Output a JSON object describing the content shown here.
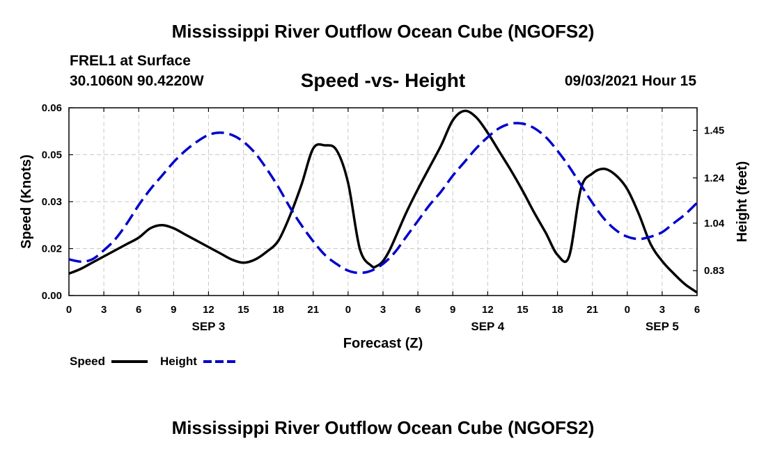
{
  "header": {
    "title_top": "Mississippi River Outflow Ocean Cube (NGOFS2)",
    "station": "FREL1 at Surface",
    "coords": "30.1060N  90.4220W",
    "datetime": "09/03/2021 Hour 15",
    "title_bottom": "Mississippi River Outflow Ocean Cube (NGOFS2)"
  },
  "chart_data": {
    "type": "line",
    "title": "Speed -vs- Height",
    "xlabel": "Forecast (Z)",
    "ylabel": "Speed (Knots)",
    "y2label": "Height (feet)",
    "xlim": [
      0,
      54
    ],
    "ylim": [
      0,
      0.06
    ],
    "y2lim": [
      0.72,
      1.55
    ],
    "x_ticks": [
      0,
      3,
      6,
      9,
      12,
      15,
      18,
      21,
      24,
      27,
      30,
      33,
      36,
      39,
      42,
      45,
      48,
      51,
      54
    ],
    "x_tick_labels": [
      "0",
      "3",
      "6",
      "9",
      "12",
      "15",
      "18",
      "21",
      "0",
      "3",
      "6",
      "9",
      "12",
      "15",
      "18",
      "21",
      "0",
      "3",
      "6"
    ],
    "y_ticks": [
      0,
      0.015,
      0.03,
      0.045,
      0.06
    ],
    "y_tick_labels": [
      "0.00",
      "0.02",
      "0.03",
      "0.05",
      "0.06"
    ],
    "y2_ticks": [
      0.83,
      1.04,
      1.24,
      1.45
    ],
    "y2_tick_labels": [
      "0.83",
      "1.04",
      "1.24",
      "1.45"
    ],
    "day_labels": [
      {
        "x": 12,
        "label": "SEP 3"
      },
      {
        "x": 36,
        "label": "SEP 4"
      },
      {
        "x": 51,
        "label": "SEP 5"
      }
    ],
    "legend": [
      {
        "name": "Speed",
        "color": "#000000",
        "dash": false
      },
      {
        "name": "Height",
        "color": "#0000cc",
        "dash": true
      }
    ],
    "series": [
      {
        "name": "Speed",
        "axis": "left",
        "color": "#000000",
        "x": [
          0,
          1,
          2,
          3,
          4,
          5,
          6,
          7,
          8,
          9,
          10,
          11,
          12,
          13,
          14,
          15,
          16,
          17,
          18,
          19,
          20,
          21,
          22,
          23,
          24,
          25,
          26,
          26.5,
          27,
          27.5,
          28,
          29,
          30,
          31,
          32,
          33,
          34,
          35,
          36,
          37,
          38,
          39,
          40,
          41,
          42,
          43,
          44,
          45,
          46,
          47,
          48,
          49,
          50,
          51,
          52,
          53,
          54
        ],
        "y": [
          0.007,
          0.0085,
          0.0105,
          0.0125,
          0.0145,
          0.0165,
          0.0185,
          0.0215,
          0.0225,
          0.0215,
          0.0195,
          0.0175,
          0.0155,
          0.0135,
          0.0115,
          0.0105,
          0.0115,
          0.014,
          0.0175,
          0.0255,
          0.0355,
          0.047,
          0.048,
          0.0465,
          0.036,
          0.015,
          0.0095,
          0.0095,
          0.011,
          0.014,
          0.018,
          0.0265,
          0.034,
          0.041,
          0.048,
          0.056,
          0.059,
          0.057,
          0.052,
          0.046,
          0.04,
          0.0335,
          0.0265,
          0.02,
          0.013,
          0.0125,
          0.034,
          0.039,
          0.0405,
          0.0385,
          0.034,
          0.026,
          0.0165,
          0.011,
          0.007,
          0.0035,
          0.001
        ]
      },
      {
        "name": "Height",
        "axis": "right",
        "color": "#0000cc",
        "x": [
          0,
          1,
          2,
          3,
          4,
          5,
          6,
          7,
          8,
          9,
          10,
          11,
          12,
          13,
          14,
          15,
          16,
          17,
          18,
          19,
          20,
          21,
          22,
          23,
          24,
          25,
          26,
          27,
          28,
          29,
          30,
          31,
          32,
          33,
          34,
          35,
          36,
          37,
          38,
          39,
          40,
          41,
          42,
          43,
          44,
          45,
          46,
          47,
          48,
          49,
          50,
          51,
          52,
          53,
          54
        ],
        "y": [
          0.88,
          0.87,
          0.88,
          0.92,
          0.97,
          1.04,
          1.12,
          1.19,
          1.25,
          1.31,
          1.36,
          1.4,
          1.43,
          1.44,
          1.43,
          1.4,
          1.35,
          1.28,
          1.2,
          1.11,
          1.03,
          0.96,
          0.9,
          0.86,
          0.83,
          0.82,
          0.83,
          0.86,
          0.91,
          0.98,
          1.05,
          1.12,
          1.18,
          1.25,
          1.31,
          1.37,
          1.42,
          1.46,
          1.48,
          1.48,
          1.46,
          1.42,
          1.36,
          1.29,
          1.21,
          1.13,
          1.06,
          1.01,
          0.98,
          0.97,
          0.98,
          1.0,
          1.04,
          1.08,
          1.13
        ]
      }
    ]
  }
}
